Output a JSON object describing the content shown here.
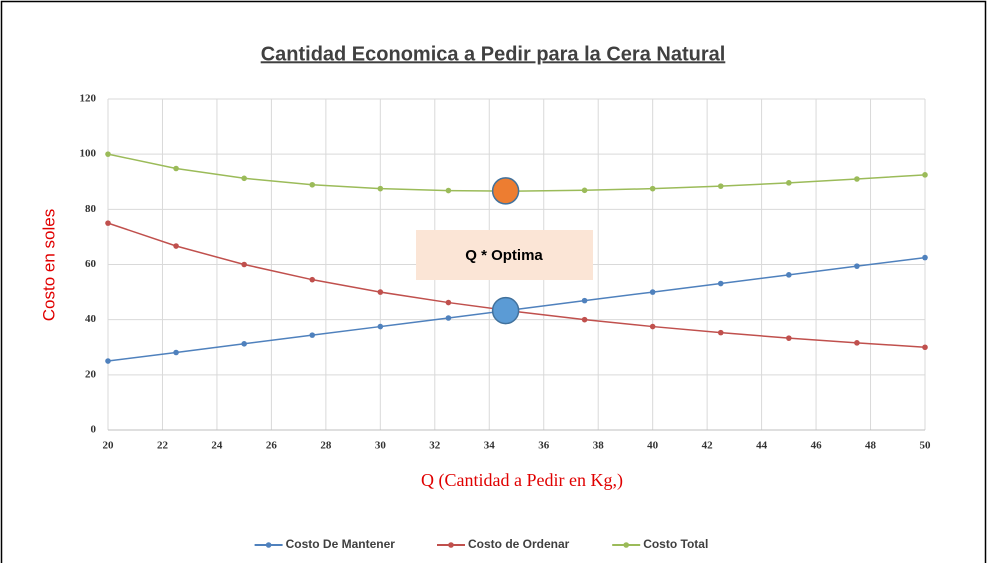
{
  "chart_data": {
    "type": "line",
    "title": "Cantidad Economica a Pedir  para la Cera Natural",
    "y_label": "Costo en soles",
    "x_label": "Q (Cantidad a Pedir en Kg,)",
    "annotation": "Q * Optima",
    "x": [
      20,
      22.5,
      25,
      27.5,
      30,
      32.5,
      35,
      37.5,
      40,
      42.5,
      45,
      47.5,
      50
    ],
    "series": [
      {
        "name": "Costo De Mantener",
        "color": "#4f81bd",
        "values": [
          25,
          28.1,
          31.25,
          34.4,
          37.5,
          40.6,
          43.75,
          46.9,
          50,
          53.1,
          56.25,
          59.4,
          62.5
        ]
      },
      {
        "name": "Costo de Ordenar",
        "color": "#c0504d",
        "values": [
          75,
          66.7,
          60,
          54.5,
          50,
          46.2,
          42.9,
          40,
          37.5,
          35.3,
          33.3,
          31.6,
          30
        ]
      },
      {
        "name": "Costo Total",
        "color": "#9bbb59",
        "values": [
          100,
          94.8,
          91.25,
          88.9,
          87.5,
          86.8,
          86.6,
          86.9,
          87.5,
          88.4,
          89.6,
          91,
          92.5
        ]
      }
    ],
    "highlights": [
      {
        "x": 34.6,
        "y": 86.7,
        "color": "#ed7d31"
      },
      {
        "x": 34.6,
        "y": 43.3,
        "color": "#5b9bd5"
      }
    ],
    "xlim": [
      20,
      50
    ],
    "xticks": [
      20,
      22,
      24,
      26,
      28,
      30,
      32,
      34,
      36,
      38,
      40,
      42,
      44,
      46,
      48,
      50
    ],
    "ylim": [
      0,
      120
    ],
    "yticks": [
      0,
      20,
      40,
      60,
      80,
      100,
      120
    ],
    "grid": true,
    "legend": "bottom"
  }
}
